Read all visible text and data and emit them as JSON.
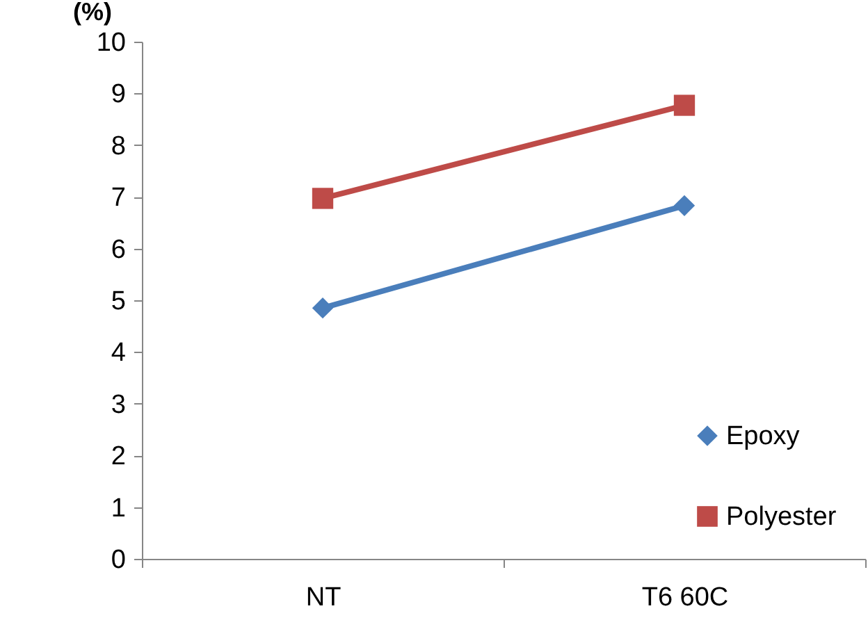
{
  "chart_data": {
    "type": "line",
    "ylabel": "(%)",
    "categories": [
      "NT",
      "T6 60C"
    ],
    "series": [
      {
        "name": "Epoxy",
        "color": "#4a7ebb",
        "values": [
          4.85,
          6.83
        ],
        "marker": "diamond"
      },
      {
        "name": "Polyester",
        "color": "#be4b48",
        "values": [
          6.97,
          8.77
        ],
        "marker": "square"
      }
    ],
    "ylim": [
      0,
      10
    ],
    "yticks": [
      0,
      1,
      2,
      3,
      4,
      5,
      6,
      7,
      8,
      9,
      10
    ],
    "grid": false,
    "legend": "bottom right",
    "line_style": "solid"
  }
}
